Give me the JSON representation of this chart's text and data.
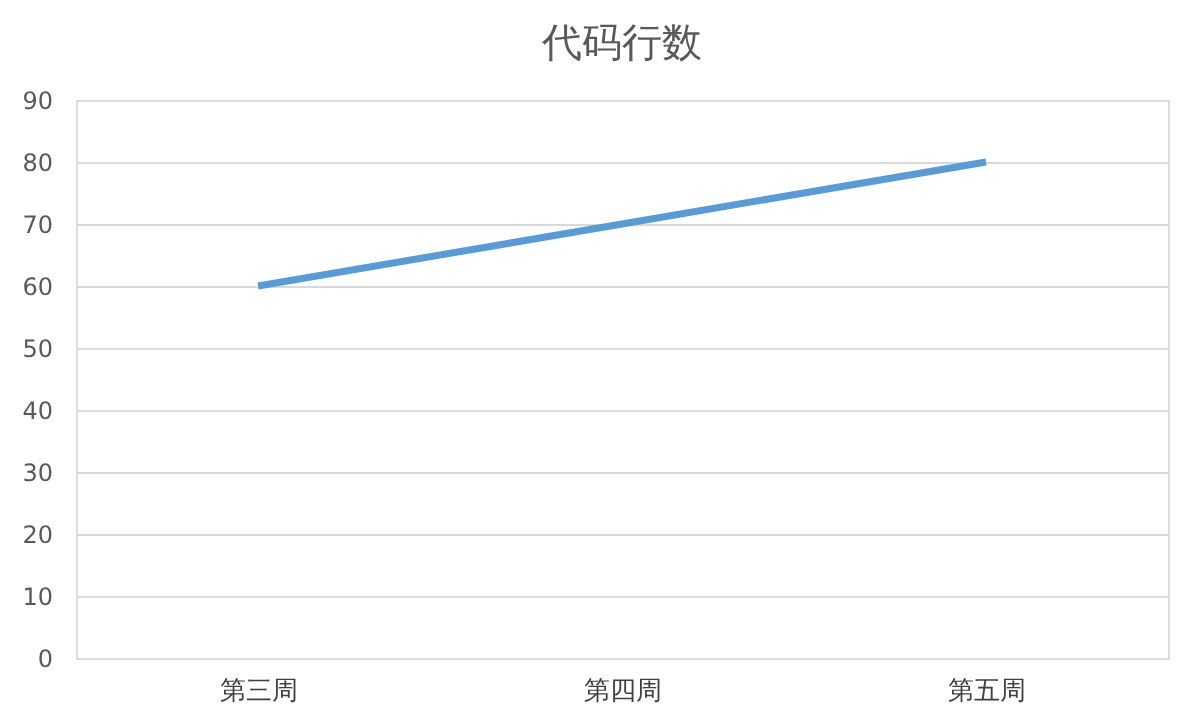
{
  "chart_data": {
    "type": "line",
    "title": "代码行数",
    "categories": [
      "第三周",
      "第四周",
      "第五周"
    ],
    "series": [
      {
        "color": "#5b9bd5",
        "values": [
          60,
          70,
          80
        ]
      }
    ],
    "ylim": [
      0,
      90
    ],
    "yticks": [
      0,
      10,
      20,
      30,
      40,
      50,
      60,
      70,
      80,
      90
    ],
    "grid": "y",
    "legend": false,
    "marker": "none",
    "line_style": "solid"
  }
}
